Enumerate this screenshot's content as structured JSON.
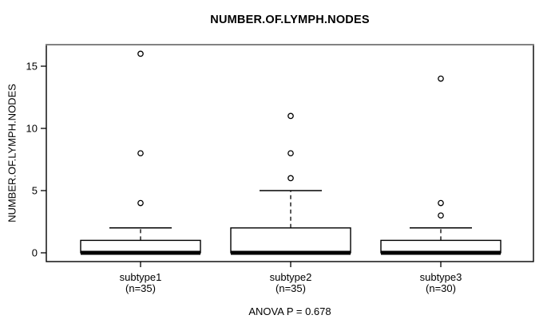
{
  "chart_data": {
    "type": "boxplot",
    "title": "NUMBER.OF.LYMPH.NODES",
    "ylabel": "NUMBER.OF.LYMPH.NODES",
    "xlabel": "",
    "annotation": "ANOVA P = 0.678",
    "yticks": [
      0,
      5,
      10,
      15
    ],
    "ylim": [
      -0.7,
      16.7
    ],
    "grid": false,
    "groups": [
      {
        "label": "subtype1",
        "count_label": "(n=35)",
        "n": 35,
        "median": 0,
        "q1": 0,
        "q3": 1,
        "whisker_low": 0,
        "whisker_high": 2,
        "outliers": [
          4,
          8,
          16
        ]
      },
      {
        "label": "subtype2",
        "count_label": "(n=35)",
        "n": 35,
        "median": 0,
        "q1": 0,
        "q3": 2,
        "whisker_low": 0,
        "whisker_high": 5,
        "outliers": [
          6,
          8,
          11
        ]
      },
      {
        "label": "subtype3",
        "count_label": "(n=30)",
        "n": 30,
        "median": 0,
        "q1": 0,
        "q3": 1,
        "whisker_low": 0,
        "whisker_high": 2,
        "outliers": [
          3,
          4,
          14
        ]
      }
    ],
    "colors": {
      "stroke": "#000000",
      "box_fill": "#ffffff",
      "frame_top": "#828282",
      "background": "#ffffff"
    }
  }
}
